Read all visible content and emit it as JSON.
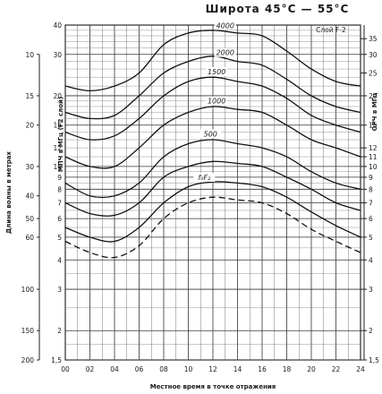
{
  "chart_data": {
    "type": "line",
    "title": "Широта 45°С — 55°С",
    "figure_label": "Слой F-2",
    "xlabel": "Местное время в точке отражения",
    "ylabel_left": "Длина волны в метрах",
    "ylabel_left_inner": "МПЧ в МГц (F2 слой)",
    "ylabel_right": "ОРЧ в МГц",
    "x_ticks": [
      "00",
      "02",
      "04",
      "06",
      "08",
      "10",
      "12",
      "14",
      "16",
      "18",
      "20",
      "22",
      "24"
    ],
    "left_wavelength_ticks": [
      "10",
      "15",
      "20",
      "30",
      "40",
      "50",
      "60",
      "100",
      "150",
      "200"
    ],
    "left_freq_ticks": [
      "40",
      "30",
      "20",
      "15",
      "12",
      "10",
      "9",
      "8",
      "7",
      "6",
      "5",
      "4",
      "3",
      "2",
      "1,5"
    ],
    "right_freq_ticks": [
      "35",
      "30",
      "25",
      "20",
      "15",
      "12",
      "11",
      "10",
      "9",
      "8",
      "7",
      "6",
      "5",
      "4",
      "3",
      "2",
      "1,5"
    ],
    "freq_range": [
      1.5,
      40
    ],
    "grid": true,
    "series": [
      {
        "name": "4000",
        "x": [
          0,
          2,
          4,
          6,
          8,
          10,
          12,
          14,
          16,
          18,
          20,
          22,
          24
        ],
        "y": [
          22,
          21,
          22,
          25,
          33,
          37,
          38,
          37,
          36,
          31,
          26,
          23,
          22
        ]
      },
      {
        "name": "2000",
        "x": [
          0,
          2,
          4,
          6,
          8,
          10,
          12,
          14,
          16,
          18,
          20,
          22,
          24
        ],
        "y": [
          17,
          16,
          16.5,
          20,
          25,
          28,
          29.5,
          28,
          27,
          23.5,
          20,
          18,
          17
        ]
      },
      {
        "name": "1500",
        "x": [
          0,
          2,
          4,
          6,
          8,
          10,
          12,
          14,
          16,
          18,
          20,
          22,
          24
        ],
        "y": [
          14,
          13,
          13.5,
          16,
          20,
          23,
          24,
          23,
          22,
          19.5,
          16.5,
          15,
          14
        ]
      },
      {
        "name": "1000",
        "x": [
          0,
          2,
          4,
          6,
          8,
          10,
          12,
          14,
          16,
          18,
          20,
          22,
          24
        ],
        "y": [
          11,
          10,
          10,
          12,
          15,
          17,
          18,
          17.5,
          17,
          15,
          13,
          12,
          11
        ]
      },
      {
        "name": "500",
        "x": [
          0,
          2,
          4,
          6,
          8,
          10,
          12,
          14,
          16,
          18,
          20,
          22,
          24
        ],
        "y": [
          8.5,
          7.5,
          7.5,
          8.5,
          11,
          12.5,
          13,
          12.5,
          12,
          11,
          9.5,
          8.5,
          8
        ]
      },
      {
        "name": "",
        "x": [
          0,
          2,
          4,
          6,
          8,
          10,
          12,
          14,
          16,
          18,
          20,
          22,
          24
        ],
        "y": [
          7,
          6.3,
          6.2,
          7,
          9,
          10,
          10.5,
          10.3,
          10,
          9,
          8,
          7,
          6.5
        ]
      },
      {
        "name": "f₀F₂",
        "x": [
          0,
          2,
          4,
          6,
          8,
          10,
          12,
          14,
          16,
          18,
          20,
          22,
          24
        ],
        "y": [
          5.5,
          5,
          4.8,
          5.5,
          7,
          8.2,
          8.6,
          8.5,
          8.2,
          7.4,
          6.4,
          5.6,
          5
        ]
      },
      {
        "name": "",
        "x": [
          0,
          2,
          4,
          6,
          8,
          10,
          12,
          14,
          16,
          18,
          20,
          22,
          24
        ],
        "y": [
          4.8,
          4.3,
          4.1,
          4.6,
          6,
          7,
          7.4,
          7.2,
          7,
          6.3,
          5.4,
          4.8,
          4.3
        ]
      }
    ]
  }
}
